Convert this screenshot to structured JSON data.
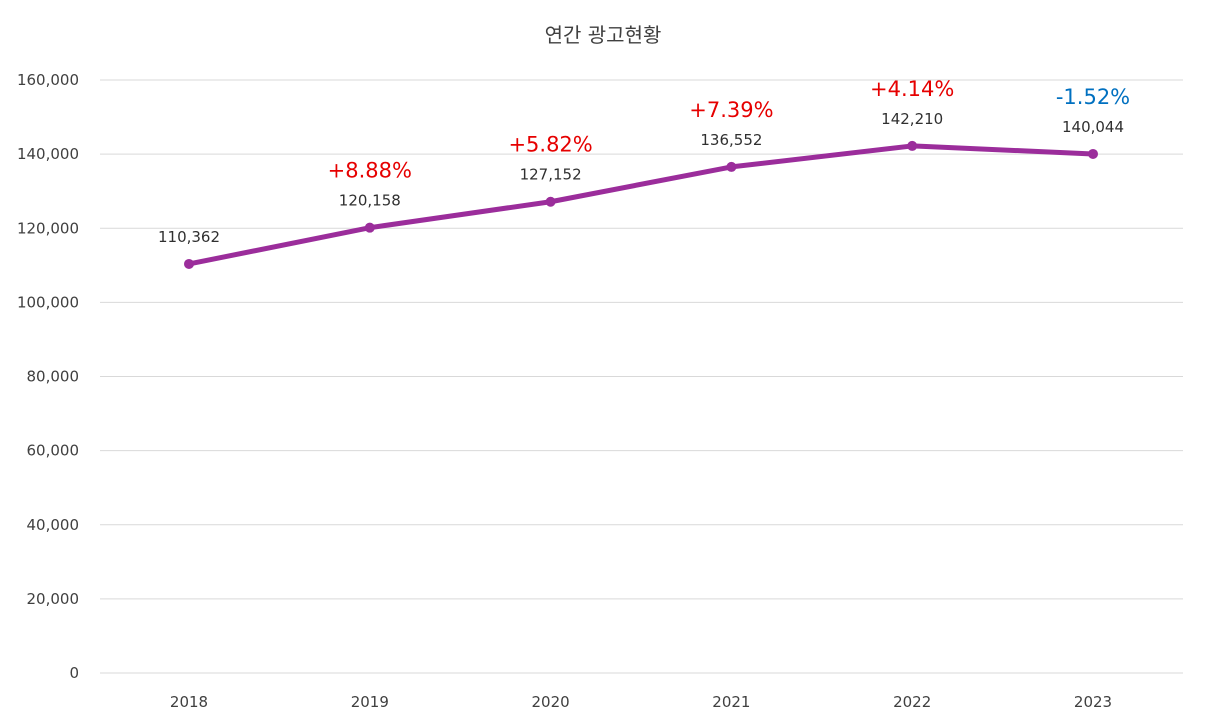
{
  "chart_data": {
    "type": "line",
    "title": "연간  광고현황",
    "xlabel": "",
    "ylabel": "",
    "categories": [
      "2018",
      "2019",
      "2020",
      "2021",
      "2022",
      "2023"
    ],
    "y_ticks": [
      "0",
      "20,000",
      "40,000",
      "60,000",
      "80,000",
      "100,000",
      "120,000",
      "140,000",
      "160,000"
    ],
    "ylim": [
      0,
      160000
    ],
    "grid": true,
    "legend": "none",
    "series": [
      {
        "values": [
          110362,
          120158,
          127152,
          136552,
          142210,
          140044
        ],
        "data_labels": [
          "110,362",
          "120,158",
          "127,152",
          "136,552",
          "142,210",
          "140,044"
        ],
        "color": "#9b2d9b"
      }
    ],
    "annotations": [
      {
        "category": "2019",
        "text": "+8.88%",
        "color": "#e60000"
      },
      {
        "category": "2020",
        "text": "+5.82%",
        "color": "#e60000"
      },
      {
        "category": "2021",
        "text": "+7.39%",
        "color": "#e60000"
      },
      {
        "category": "2022",
        "text": "+4.14%",
        "color": "#e60000"
      },
      {
        "category": "2023",
        "text": "-1.52%",
        "color": "#0070c0"
      }
    ]
  }
}
